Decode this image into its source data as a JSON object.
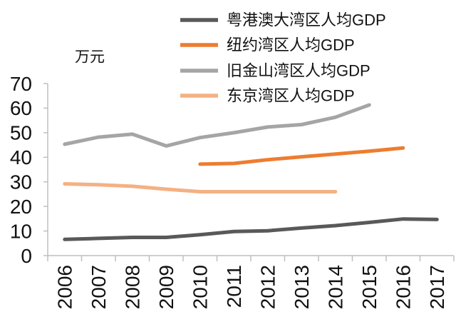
{
  "chart_data": {
    "type": "line",
    "ylabel": "万元",
    "ylim": [
      0,
      70
    ],
    "yticks": [
      0,
      10,
      20,
      30,
      40,
      50,
      60,
      70
    ],
    "categories": [
      "2006",
      "2007",
      "2008",
      "2009",
      "2010",
      "2011",
      "2012",
      "2013",
      "2014",
      "2015",
      "2016",
      "2017"
    ],
    "grid": false,
    "legend": "top-right",
    "series": [
      {
        "name": "粤港澳大湾区人均GDP",
        "color": "#595959",
        "values": [
          6.6,
          7.0,
          7.4,
          7.4,
          8.5,
          9.8,
          10.1,
          11.2,
          12.2,
          13.5,
          14.9,
          14.7
        ]
      },
      {
        "name": "纽约湾区人均GDP",
        "color": "#ED7D31",
        "values": [
          null,
          null,
          null,
          null,
          37.2,
          37.5,
          39.0,
          40.2,
          41.3,
          42.5,
          43.8,
          null
        ]
      },
      {
        "name": "旧金山湾区人均GDP",
        "color": "#A5A5A5",
        "values": [
          45.3,
          48.2,
          49.4,
          44.6,
          48.0,
          50.0,
          52.3,
          53.3,
          56.3,
          61.3,
          null,
          null
        ]
      },
      {
        "name": "东京湾区人均GDP",
        "color": "#F4B183",
        "values": [
          29.2,
          28.8,
          28.2,
          27.0,
          26.0,
          26.0,
          26.0,
          26.0,
          26.0,
          null,
          null,
          null
        ]
      }
    ]
  }
}
